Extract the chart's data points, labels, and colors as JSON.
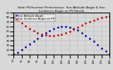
{
  "title": "Solar PV/Inverter Performance  Sun Altitude Angle & Sun Incidence Angle on PV Panels",
  "blue_label": "Sun Altitude Angle",
  "red_label": "Sun Incidence Angle on PV",
  "blue_color": "#0000cc",
  "red_color": "#cc0000",
  "background_color": "#d8d8d8",
  "x_values": [
    6,
    6.5,
    7,
    7.5,
    8,
    8.5,
    9,
    9.5,
    10,
    10.5,
    11,
    11.5,
    12,
    12.5,
    13,
    13.5,
    14,
    14.5,
    15,
    15.5,
    16,
    16.5,
    17,
    17.5,
    18
  ],
  "blue_y": [
    2,
    5,
    10,
    16,
    22,
    29,
    35,
    41,
    46,
    51,
    55,
    58,
    60,
    60,
    59,
    56,
    52,
    47,
    41,
    35,
    28,
    21,
    14,
    7,
    2
  ],
  "red_y": [
    80,
    74,
    68,
    62,
    56,
    51,
    47,
    44,
    42,
    41,
    41,
    42,
    44,
    47,
    50,
    54,
    59,
    63,
    67,
    71,
    74,
    77,
    79,
    81,
    82
  ],
  "xlim": [
    6,
    18
  ],
  "ylim": [
    0,
    90
  ],
  "yticks": [
    0,
    10,
    20,
    30,
    40,
    50,
    60,
    70,
    80,
    90
  ],
  "xtick_labels": [
    "6h",
    "7h",
    "8h",
    "9h",
    "10h",
    "11h",
    "12h",
    "13h",
    "14h",
    "15h",
    "16h",
    "17h",
    "18h"
  ],
  "xtick_positions": [
    6,
    7,
    8,
    9,
    10,
    11,
    12,
    13,
    14,
    15,
    16,
    17,
    18
  ],
  "grid_color": "#888888",
  "title_fontsize": 3.2,
  "tick_fontsize": 2.8,
  "legend_fontsize": 2.8,
  "marker_size": 1.0
}
